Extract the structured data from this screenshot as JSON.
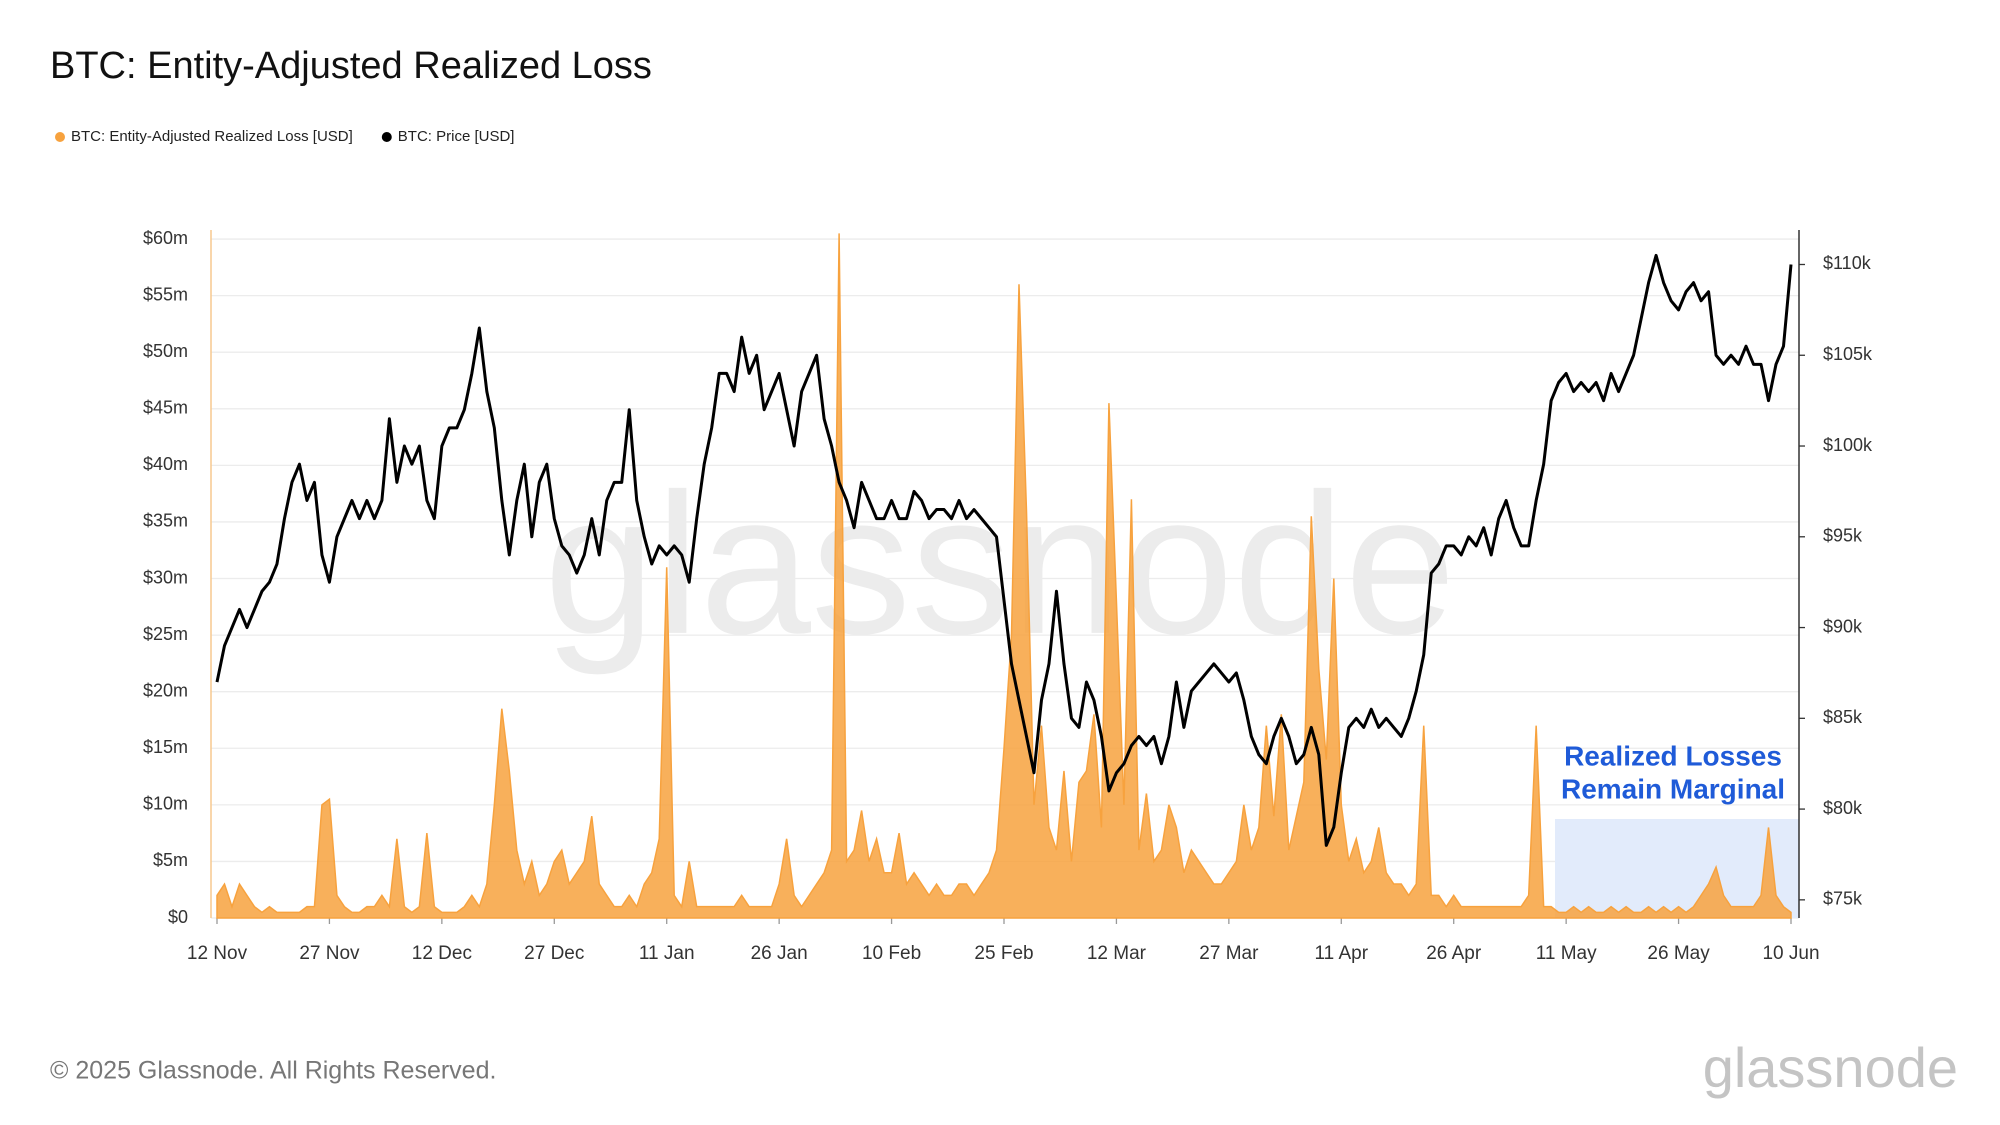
{
  "chart_data": {
    "type": "area_line",
    "title": "BTC: Entity-Adjusted Realized Loss",
    "categories": [
      "12 Nov",
      null,
      null,
      null,
      null,
      null,
      null,
      null,
      null,
      null,
      null,
      null,
      null,
      null,
      null,
      "27 Nov",
      null,
      null,
      null,
      null,
      null,
      null,
      null,
      null,
      null,
      null,
      null,
      null,
      null,
      null,
      "12 Dec",
      null,
      null,
      null,
      null,
      null,
      null,
      null,
      null,
      null,
      null,
      null,
      null,
      null,
      null,
      "27 Dec",
      null,
      null,
      null,
      null,
      null,
      null,
      null,
      null,
      null,
      null,
      null,
      null,
      null,
      null,
      "11 Jan",
      null,
      null,
      null,
      null,
      null,
      null,
      null,
      null,
      null,
      null,
      null,
      null,
      null,
      null,
      "26 Jan",
      null,
      null,
      null,
      null,
      null,
      null,
      null,
      null,
      null,
      null,
      null,
      null,
      null,
      null,
      "10 Feb",
      null,
      null,
      null,
      null,
      null,
      null,
      null,
      null,
      null,
      null,
      null,
      null,
      null,
      null,
      "25 Feb",
      null,
      null,
      null,
      null,
      null,
      null,
      null,
      null,
      null,
      null,
      null,
      null,
      null,
      null,
      "12 Mar",
      null,
      null,
      null,
      null,
      null,
      null,
      null,
      null,
      null,
      null,
      null,
      null,
      null,
      null,
      "27 Mar",
      null,
      null,
      null,
      null,
      null,
      null,
      null,
      null,
      null,
      null,
      null,
      null,
      null,
      null,
      "11 Apr",
      null,
      null,
      null,
      null,
      null,
      null,
      null,
      null,
      null,
      null,
      null,
      null,
      null,
      null,
      "26 Apr",
      null,
      null,
      null,
      null,
      null,
      null,
      null,
      null,
      null,
      null,
      null,
      null,
      null,
      null,
      "11 May",
      null,
      null,
      null,
      null,
      null,
      null,
      null,
      null,
      null,
      null,
      null,
      null,
      null,
      null,
      "26 May",
      null,
      null,
      null,
      null,
      null,
      null,
      null,
      null,
      null,
      null,
      null,
      null,
      null,
      null,
      "10 Jun"
    ],
    "series": [
      {
        "name": "BTC: Entity-Adjusted Realized Loss [USD]",
        "color": "#f7a23e",
        "kind": "area",
        "values": [
          2,
          3,
          1,
          3,
          2,
          1,
          0.5,
          1,
          0.5,
          0.5,
          0.5,
          0.5,
          1,
          1,
          10,
          10.5,
          2,
          1,
          0.5,
          0.5,
          1,
          1,
          2,
          1,
          7,
          1,
          0.5,
          1,
          7.5,
          1,
          0.5,
          0.5,
          0.5,
          1,
          2,
          1,
          3,
          10,
          18.5,
          13,
          6,
          3,
          5,
          2,
          3,
          5,
          6,
          3,
          4,
          5,
          9,
          3,
          2,
          1,
          1,
          2,
          1,
          3,
          4,
          7,
          31,
          2,
          1,
          5,
          1,
          1,
          1,
          1,
          1,
          1,
          2,
          1,
          1,
          1,
          1,
          3,
          7,
          2,
          1,
          2,
          3,
          4,
          6,
          60.5,
          5,
          6,
          9.5,
          5,
          7,
          4,
          4,
          7.5,
          3,
          4,
          3,
          2,
          3,
          2,
          2,
          3,
          3,
          2,
          3,
          4,
          6,
          15,
          25,
          56,
          36,
          10,
          17,
          8,
          6,
          13,
          5,
          12,
          13,
          18,
          8,
          45.5,
          28,
          10,
          37,
          6,
          11,
          5,
          6,
          10,
          8,
          4,
          6,
          5,
          4,
          3,
          3,
          4,
          5,
          10,
          6,
          8,
          17,
          9,
          18,
          6,
          9,
          12,
          35.5,
          22,
          14,
          30,
          10,
          5,
          7,
          4,
          5,
          8,
          4,
          3,
          3,
          2,
          3,
          17,
          2,
          2,
          1,
          2,
          1,
          1,
          1,
          1,
          1,
          1,
          1,
          1,
          1,
          2,
          17,
          1,
          1,
          0.5,
          0.5,
          1,
          0.5,
          1,
          0.5,
          0.5,
          1,
          0.5,
          1,
          0.5,
          0.5,
          1,
          0.5,
          1,
          0.5,
          1,
          0.5,
          1,
          2,
          3,
          4.5,
          2,
          1,
          1,
          1,
          1,
          2,
          8,
          2,
          1,
          0.5
        ]
      },
      {
        "name": "BTC: Price [USD]",
        "color": "#000000",
        "kind": "line",
        "axis": "y2",
        "values": [
          87,
          89,
          90,
          91,
          90,
          91,
          92,
          92.5,
          93.5,
          96,
          98,
          99,
          97,
          98,
          94,
          92.5,
          95,
          96,
          97,
          96,
          97,
          96,
          97,
          101.5,
          98,
          100,
          99,
          100,
          97,
          96,
          100,
          101,
          101,
          102,
          104,
          106.5,
          103,
          101,
          97,
          94,
          97,
          99,
          95,
          98,
          99,
          96,
          94.5,
          94,
          93,
          94,
          96,
          94,
          97,
          98,
          98,
          102,
          97,
          95,
          93.5,
          94.5,
          94,
          94.5,
          94,
          92.5,
          96,
          99,
          101,
          104,
          104,
          103,
          106,
          104,
          105,
          102,
          103,
          104,
          102,
          100,
          103,
          104,
          105,
          101.5,
          100,
          98,
          97,
          95.5,
          98,
          97,
          96,
          96,
          97,
          96,
          96,
          97.5,
          97,
          96,
          96.5,
          96.5,
          96,
          97,
          96,
          96.5,
          96,
          95.5,
          95,
          91.5,
          88,
          86,
          84,
          82,
          86,
          88,
          92,
          88,
          85,
          84.5,
          87,
          86,
          84,
          81,
          82,
          82.5,
          83.5,
          84,
          83.5,
          84,
          82.5,
          84,
          87,
          84.5,
          86.5,
          87,
          87.5,
          88,
          87.5,
          87,
          87.5,
          86,
          84,
          83,
          82.5,
          84,
          85,
          84,
          82.5,
          83,
          84.5,
          83,
          78,
          79,
          82,
          84.5,
          85,
          84.5,
          85.5,
          84.5,
          85,
          84.5,
          84,
          85,
          86.5,
          88.5,
          93,
          93.5,
          94.5,
          94.5,
          94,
          95,
          94.5,
          95.5,
          94,
          96,
          97,
          95.5,
          94.5,
          94.5,
          97,
          99,
          102.5,
          103.5,
          104,
          103,
          103.5,
          103,
          103.5,
          102.5,
          104,
          103,
          104,
          105,
          107,
          109,
          110.5,
          109,
          108,
          107.5,
          108.5,
          109,
          108,
          108.5,
          105,
          104.5,
          105,
          104.5,
          105.5,
          104.5,
          104.5,
          102.5,
          104.5,
          105.5,
          110
        ]
      }
    ],
    "ylim": [
      0,
      60.8
    ],
    "yticks": [
      {
        "value": 0,
        "label": "$0"
      },
      {
        "value": 5,
        "label": "$5m"
      },
      {
        "value": 10,
        "label": "$10m"
      },
      {
        "value": 15,
        "label": "$15m"
      },
      {
        "value": 20,
        "label": "$20m"
      },
      {
        "value": 25,
        "label": "$25m"
      },
      {
        "value": 30,
        "label": "$30m"
      },
      {
        "value": 35,
        "label": "$35m"
      },
      {
        "value": 40,
        "label": "$40m"
      },
      {
        "value": 45,
        "label": "$45m"
      },
      {
        "value": 50,
        "label": "$50m"
      },
      {
        "value": 55,
        "label": "$55m"
      },
      {
        "value": 60,
        "label": "$60m"
      }
    ],
    "y2lim": [
      74,
      111.9
    ],
    "y2ticks": [
      {
        "value": 75,
        "label": "$75k"
      },
      {
        "value": 80,
        "label": "$80k"
      },
      {
        "value": 85,
        "label": "$85k"
      },
      {
        "value": 90,
        "label": "$90k"
      },
      {
        "value": 95,
        "label": "$95k"
      },
      {
        "value": 100,
        "label": "$100k"
      },
      {
        "value": 105,
        "label": "$105k"
      },
      {
        "value": 110,
        "label": "$110k"
      }
    ],
    "grid": true,
    "annotation": [
      "Realized Losses",
      "Remain Marginal"
    ],
    "watermark": "glassnode",
    "footer": "© 2025 Glassnode. All Rights Reserved.",
    "logo": "glassnode"
  }
}
